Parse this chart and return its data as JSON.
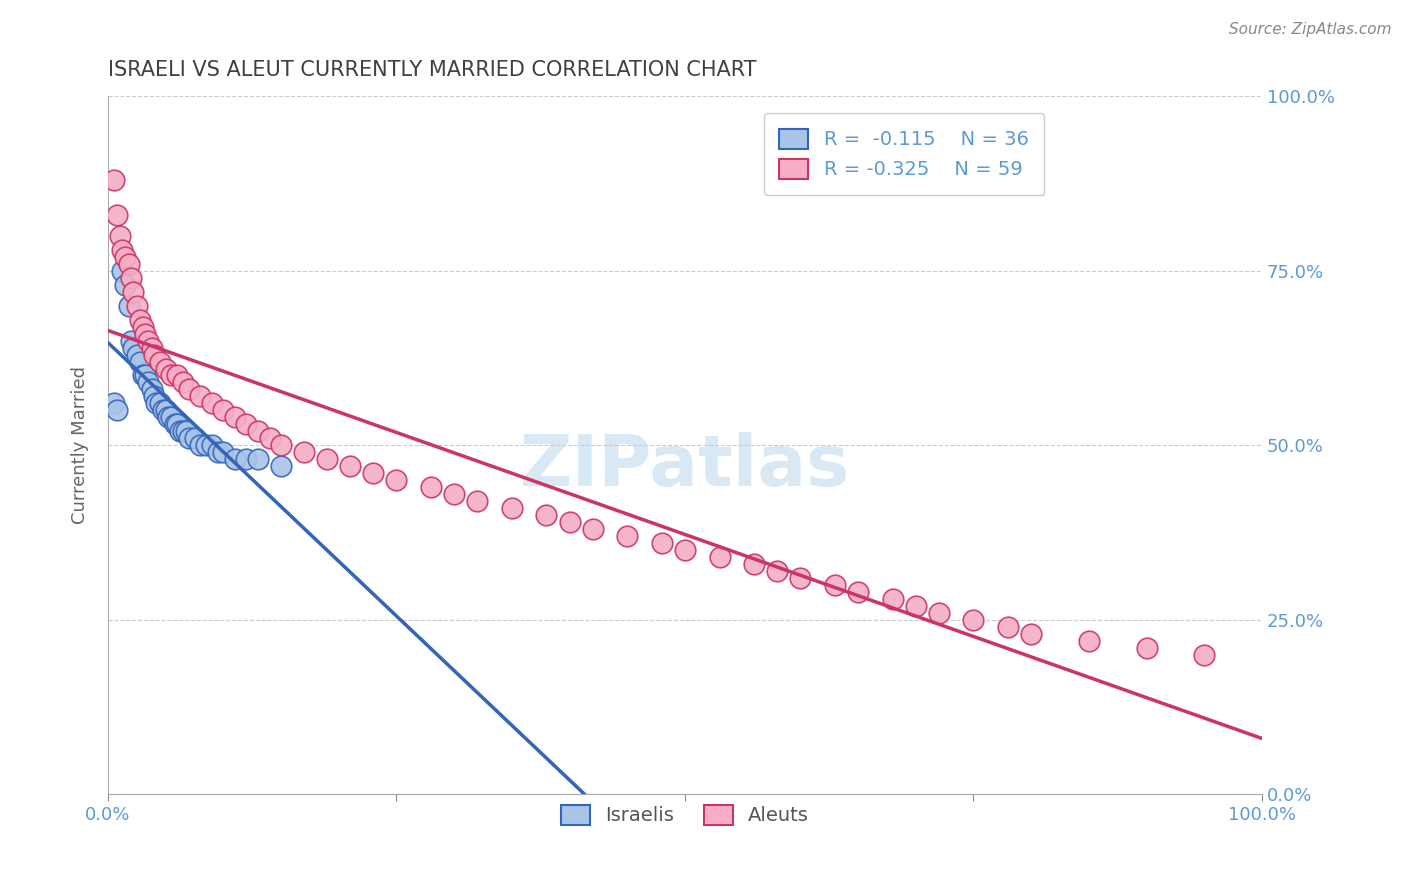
{
  "title": "ISRAELI VS ALEUT CURRENTLY MARRIED CORRELATION CHART",
  "source": "Source: ZipAtlas.com",
  "ylabel": "Currently Married",
  "legend_label1": "Israelis",
  "legend_label2": "Aleuts",
  "r1": -0.115,
  "n1": 36,
  "r2": -0.325,
  "n2": 59,
  "color1": "#aac4e8",
  "color2": "#f5aec4",
  "line_color1": "#3366bb",
  "line_color2": "#cc3366",
  "israelis_x": [
    0.005,
    0.008,
    0.012,
    0.015,
    0.018,
    0.02,
    0.022,
    0.025,
    0.028,
    0.03,
    0.032,
    0.035,
    0.038,
    0.04,
    0.042,
    0.045,
    0.048,
    0.05,
    0.052,
    0.055,
    0.058,
    0.06,
    0.062,
    0.065,
    0.068,
    0.07,
    0.075,
    0.08,
    0.085,
    0.09,
    0.095,
    0.1,
    0.11,
    0.12,
    0.13,
    0.15
  ],
  "israelis_y": [
    0.56,
    0.55,
    0.75,
    0.73,
    0.7,
    0.65,
    0.64,
    0.63,
    0.62,
    0.6,
    0.6,
    0.59,
    0.58,
    0.57,
    0.56,
    0.56,
    0.55,
    0.55,
    0.54,
    0.54,
    0.53,
    0.53,
    0.52,
    0.52,
    0.52,
    0.51,
    0.51,
    0.5,
    0.5,
    0.5,
    0.49,
    0.49,
    0.48,
    0.48,
    0.48,
    0.47
  ],
  "aleuts_x": [
    0.005,
    0.008,
    0.01,
    0.012,
    0.015,
    0.018,
    0.02,
    0.022,
    0.025,
    0.028,
    0.03,
    0.032,
    0.035,
    0.038,
    0.04,
    0.045,
    0.05,
    0.055,
    0.06,
    0.065,
    0.07,
    0.08,
    0.09,
    0.1,
    0.11,
    0.12,
    0.13,
    0.14,
    0.15,
    0.17,
    0.19,
    0.21,
    0.23,
    0.25,
    0.28,
    0.3,
    0.32,
    0.35,
    0.38,
    0.4,
    0.42,
    0.45,
    0.48,
    0.5,
    0.53,
    0.56,
    0.58,
    0.6,
    0.63,
    0.65,
    0.68,
    0.7,
    0.72,
    0.75,
    0.78,
    0.8,
    0.85,
    0.9,
    0.95
  ],
  "aleuts_y": [
    0.88,
    0.83,
    0.8,
    0.78,
    0.77,
    0.76,
    0.74,
    0.72,
    0.7,
    0.68,
    0.67,
    0.66,
    0.65,
    0.64,
    0.63,
    0.62,
    0.61,
    0.6,
    0.6,
    0.59,
    0.58,
    0.57,
    0.56,
    0.55,
    0.54,
    0.53,
    0.52,
    0.51,
    0.5,
    0.49,
    0.48,
    0.47,
    0.46,
    0.45,
    0.44,
    0.43,
    0.42,
    0.41,
    0.4,
    0.39,
    0.38,
    0.37,
    0.36,
    0.35,
    0.34,
    0.33,
    0.32,
    0.31,
    0.3,
    0.29,
    0.28,
    0.27,
    0.26,
    0.25,
    0.24,
    0.23,
    0.22,
    0.21,
    0.2
  ],
  "xlim": [
    0.0,
    1.0
  ],
  "ylim": [
    0.0,
    1.0
  ],
  "background_color": "#ffffff",
  "grid_color": "#cccccc",
  "axis_label_color": "#5b9bd5",
  "title_color": "#404040",
  "watermark_text": "ZIPatlas",
  "watermark_color": "#d8e8f4"
}
